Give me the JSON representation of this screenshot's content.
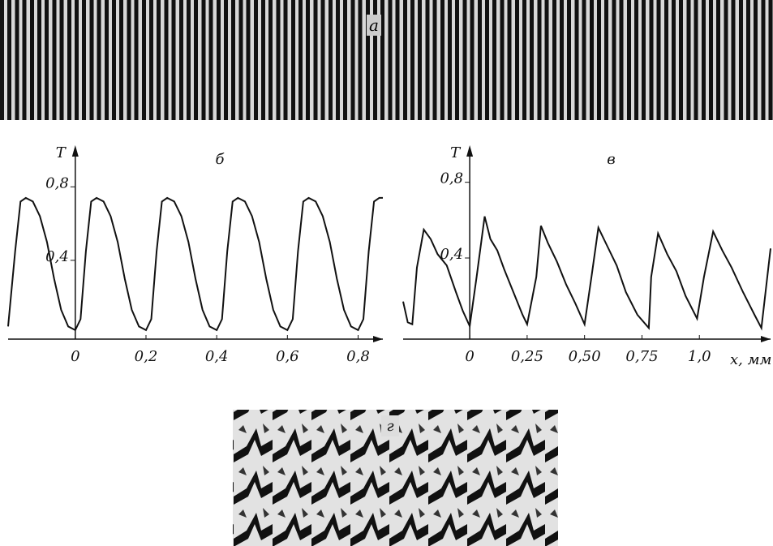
{
  "panels": {
    "top_label": "а",
    "bottom_label": "г"
  },
  "chart_data": [
    {
      "type": "line",
      "title": "б",
      "y_label": "T",
      "xlim": [
        -0.19,
        0.87
      ],
      "ylim": [
        -0.02,
        1.0
      ],
      "xticks": [
        0,
        {
          "value": 0.2,
          "label": "0,2"
        },
        {
          "value": 0.4,
          "label": "0,4"
        },
        {
          "value": 0.6,
          "label": "0,6"
        },
        {
          "value": 0.8,
          "label": "0,8"
        }
      ],
      "yticks": [
        {
          "value": 0.4,
          "label": "0,4"
        },
        {
          "value": 0.8,
          "label": "0,8"
        }
      ],
      "color": "#111111",
      "x": [
        -0.19,
        -0.17,
        -0.155,
        -0.14,
        -0.12,
        -0.1,
        -0.08,
        -0.06,
        -0.04,
        -0.02,
        0,
        0.015,
        0.03,
        0.045,
        0.06,
        0.08,
        0.1,
        0.12,
        0.14,
        0.16,
        0.18,
        0.2,
        0.215,
        0.23,
        0.245,
        0.26,
        0.28,
        0.3,
        0.32,
        0.34,
        0.36,
        0.38,
        0.4,
        0.415,
        0.43,
        0.445,
        0.46,
        0.48,
        0.5,
        0.52,
        0.54,
        0.56,
        0.58,
        0.6,
        0.615,
        0.63,
        0.645,
        0.66,
        0.68,
        0.7,
        0.72,
        0.74,
        0.76,
        0.78,
        0.8,
        0.815,
        0.83,
        0.845,
        0.86,
        0.87
      ],
      "values": [
        0.04,
        0.45,
        0.72,
        0.74,
        0.72,
        0.64,
        0.5,
        0.3,
        0.13,
        0.04,
        0.02,
        0.08,
        0.45,
        0.72,
        0.74,
        0.72,
        0.64,
        0.5,
        0.3,
        0.13,
        0.04,
        0.02,
        0.08,
        0.45,
        0.72,
        0.74,
        0.72,
        0.64,
        0.5,
        0.3,
        0.13,
        0.04,
        0.02,
        0.08,
        0.45,
        0.72,
        0.74,
        0.72,
        0.64,
        0.5,
        0.3,
        0.13,
        0.04,
        0.02,
        0.08,
        0.45,
        0.72,
        0.74,
        0.72,
        0.64,
        0.5,
        0.3,
        0.13,
        0.04,
        0.02,
        0.08,
        0.45,
        0.72,
        0.74,
        0.74
      ]
    },
    {
      "type": "line",
      "title": "в",
      "y_label": "T",
      "x_label": "x, мм",
      "xlim": [
        -0.29,
        1.31
      ],
      "ylim": [
        -0.02,
        0.97
      ],
      "xticks": [
        0,
        {
          "value": 0.25,
          "label": "0,25"
        },
        {
          "value": 0.5,
          "label": "0,50"
        },
        {
          "value": 0.75,
          "label": "0,75"
        },
        {
          "value": 1.0,
          "label": "1,0"
        }
      ],
      "yticks": [
        {
          "value": 0.4,
          "label": "0,4"
        },
        {
          "value": 0.8,
          "label": "0,8"
        }
      ],
      "color": "#111111",
      "x": [
        -0.29,
        -0.27,
        -0.25,
        -0.23,
        -0.2,
        -0.17,
        -0.14,
        -0.1,
        -0.06,
        -0.03,
        0,
        0.03,
        0.065,
        0.09,
        0.12,
        0.15,
        0.19,
        0.23,
        0.25,
        0.29,
        0.31,
        0.34,
        0.38,
        0.42,
        0.46,
        0.5,
        0.53,
        0.56,
        0.6,
        0.64,
        0.68,
        0.73,
        0.78,
        0.79,
        0.82,
        0.86,
        0.9,
        0.94,
        0.99,
        1.02,
        1.06,
        1.1,
        1.14,
        1.19,
        1.24,
        1.27,
        1.31
      ],
      "values": [
        0.17,
        0.06,
        0.05,
        0.35,
        0.55,
        0.5,
        0.42,
        0.36,
        0.22,
        0.12,
        0.04,
        0.3,
        0.62,
        0.5,
        0.44,
        0.34,
        0.22,
        0.1,
        0.05,
        0.3,
        0.57,
        0.48,
        0.38,
        0.26,
        0.16,
        0.05,
        0.3,
        0.56,
        0.46,
        0.36,
        0.22,
        0.1,
        0.03,
        0.3,
        0.53,
        0.42,
        0.33,
        0.2,
        0.08,
        0.3,
        0.54,
        0.44,
        0.35,
        0.22,
        0.1,
        0.03,
        0.45
      ]
    }
  ]
}
